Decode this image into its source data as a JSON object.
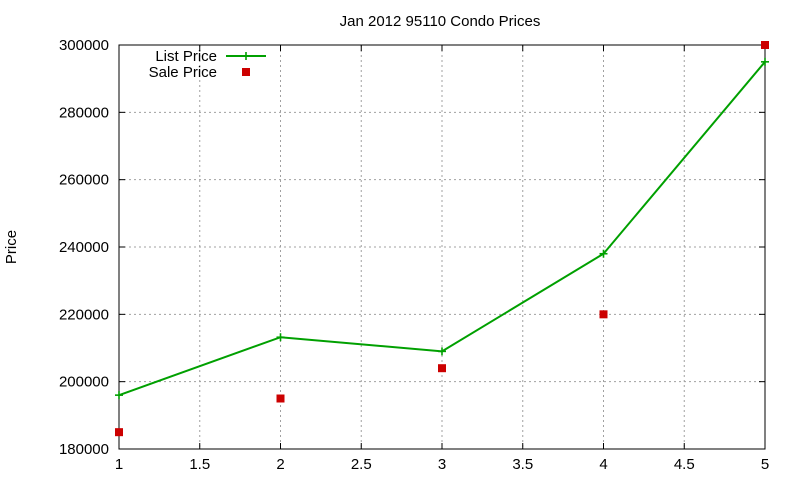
{
  "chart_data": {
    "type": "line",
    "title": "Jan 2012 95110 Condo Prices",
    "xlabel": "",
    "ylabel": "Price",
    "xlim": [
      1,
      5
    ],
    "ylim": [
      180000,
      300000
    ],
    "x_ticks": [
      "1",
      "1.5",
      "2",
      "2.5",
      "3",
      "3.5",
      "4",
      "4.5",
      "5"
    ],
    "y_ticks": [
      "180000",
      "200000",
      "220000",
      "240000",
      "260000",
      "280000",
      "300000"
    ],
    "grid": true,
    "legend_position": "top-left",
    "series": [
      {
        "name": "List Price",
        "style": "line-with-plus-markers",
        "color": "#00a000",
        "x": [
          1,
          2,
          3,
          4,
          5
        ],
        "values": [
          196000,
          213200,
          209000,
          238000,
          295000
        ]
      },
      {
        "name": "Sale Price",
        "style": "square-markers",
        "color": "#cc0000",
        "x": [
          1,
          2,
          3,
          4,
          5
        ],
        "values": [
          185000,
          195000,
          204000,
          220000,
          300000
        ]
      }
    ]
  }
}
